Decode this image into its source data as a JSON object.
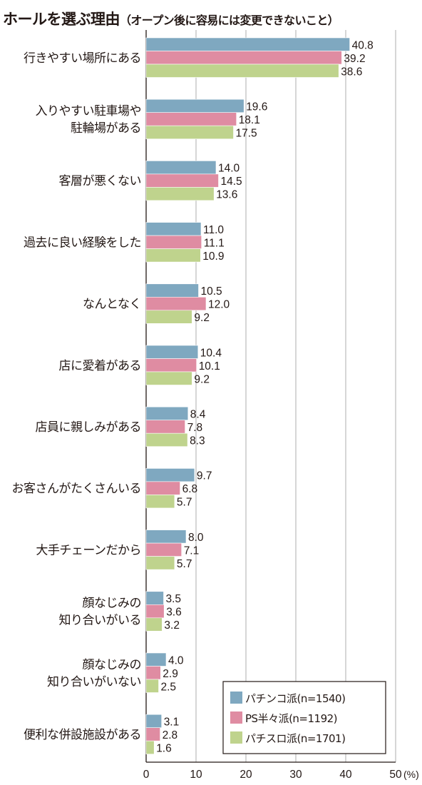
{
  "chart_data": {
    "type": "bar",
    "orientation": "horizontal",
    "title": "ホールを選ぶ理由",
    "subtitle": "（オープン後に容易には変更できないこと）",
    "categories": [
      [
        "行きやすい場所にある"
      ],
      [
        "入りやすい駐車場や",
        "駐輪場がある"
      ],
      [
        "客層が悪くない"
      ],
      [
        "過去に良い経験をした"
      ],
      [
        "なんとなく"
      ],
      [
        "店に愛着がある"
      ],
      [
        "店員に親しみがある"
      ],
      [
        "お客さんがたくさんいる"
      ],
      [
        "大手チェーンだから"
      ],
      [
        "顔なじみの",
        "知り合いがいる"
      ],
      [
        "顔なじみの",
        "知り合いがいない"
      ],
      [
        "便利な併設施設がある"
      ]
    ],
    "series": [
      {
        "name": "パチンコ派(n=1540)",
        "color": "#7fa8c0",
        "values": [
          40.8,
          19.6,
          14.0,
          11.0,
          10.5,
          10.4,
          8.4,
          9.7,
          8.0,
          3.5,
          4.0,
          3.1
        ]
      },
      {
        "name": "PS半々派(n=1192)",
        "color": "#df8ca2",
        "values": [
          39.2,
          18.1,
          14.5,
          11.1,
          12.0,
          10.1,
          7.8,
          6.8,
          7.1,
          3.6,
          2.9,
          2.8
        ]
      },
      {
        "name": "パチスロ派(n=1701)",
        "color": "#bfd38d",
        "values": [
          38.6,
          17.5,
          13.6,
          10.9,
          9.2,
          9.2,
          8.3,
          5.7,
          5.7,
          3.2,
          2.5,
          1.6
        ]
      }
    ],
    "value_labels": [
      [
        "40.8",
        "19.6",
        "14.0",
        "11.0",
        "10.5",
        "10.4",
        "8.4",
        "9.7",
        "8.0",
        "3.5",
        "4.0",
        "3.1"
      ],
      [
        "39.2",
        "18.1",
        "14.5",
        "11.1",
        "12.0",
        "10.1",
        "7.8",
        "6.8",
        "7.1",
        "3.6",
        "2.9",
        "2.8"
      ],
      [
        "38.6",
        "17.5",
        "13.6",
        "10.9",
        "9.2",
        "9.2",
        "8.3",
        "5.7",
        "5.7",
        "3.2",
        "2.5",
        "1.6"
      ]
    ],
    "x_ticks": [
      "0",
      "10",
      "20",
      "30",
      "40",
      "50"
    ],
    "x_unit": "(%)",
    "xlim": [
      0,
      50
    ],
    "grid": true,
    "legend_position": "bottom-right"
  }
}
